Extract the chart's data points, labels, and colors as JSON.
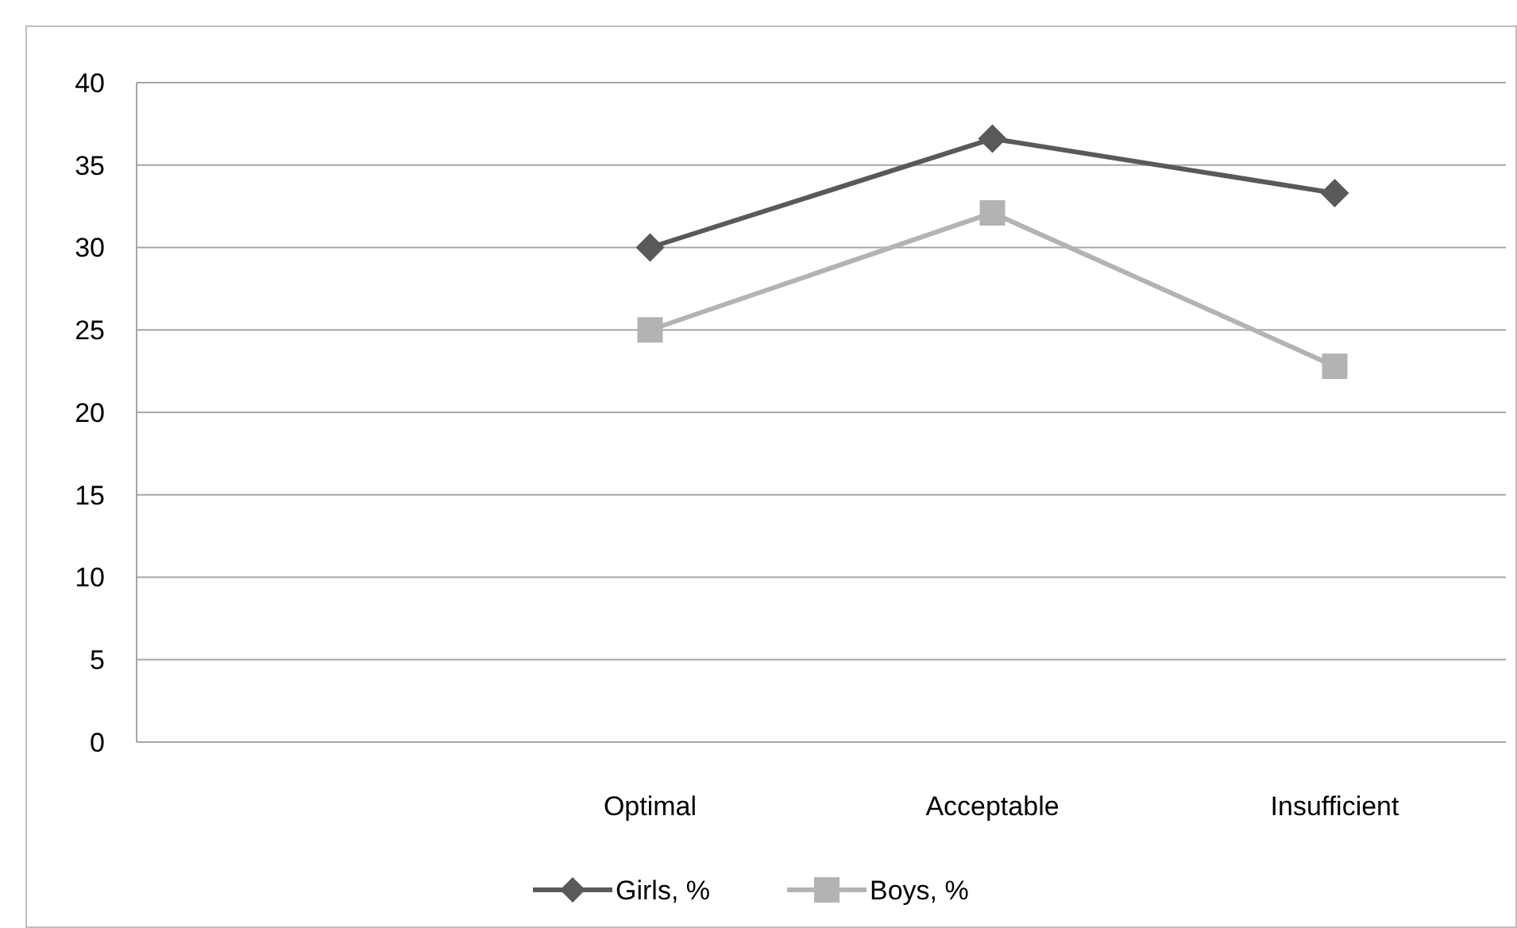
{
  "chart_data": {
    "type": "line",
    "categories": [
      null,
      "Optimal",
      "Acceptable",
      "Insufficient"
    ],
    "series": [
      {
        "name": "Girls, %",
        "color": "#595959",
        "values": [
          null,
          30,
          36.6,
          33.3
        ],
        "marker": "diamond"
      },
      {
        "name": "Boys, %",
        "color": "#b3b3b3",
        "values": [
          null,
          25,
          32.1,
          22.8
        ],
        "marker": "square"
      }
    ],
    "ylim": [
      0,
      40
    ],
    "yticks": [
      0,
      5,
      10,
      15,
      20,
      25,
      30,
      35,
      40
    ],
    "grid": "y",
    "legend": "bottom"
  }
}
